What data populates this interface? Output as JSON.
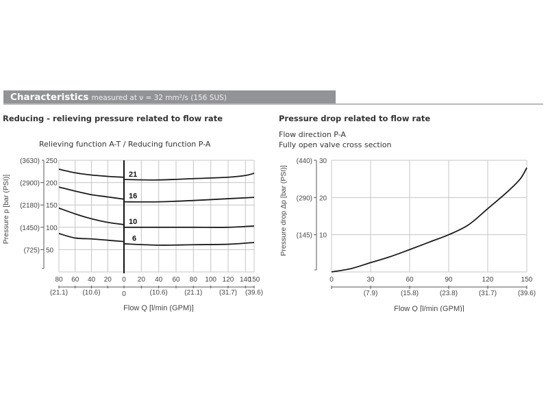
{
  "header": {
    "title": "Characteristics",
    "subtitle": "measured at ν = 32 mm²/s (156 SUS)",
    "bar_color": "#929396"
  },
  "left_panel": {
    "heading": "Reducing - relieving pressure related to flow rate",
    "caption": "Relieving function A-T  /  Reducing function P-A"
  },
  "right_panel": {
    "heading": "Pressure drop related to flow rate",
    "line1": "Flow direction P-A",
    "line2": "Fully open valve cross section"
  },
  "chart_data": [
    {
      "type": "line",
      "title": "Reducing - relieving pressure related to flow rate",
      "subtitle": "Relieving function A-T / Reducing function P-A",
      "xlabel": "Flow Q [l/min (GPM)]",
      "ylabel": "Pressure p [bar (PSI)]",
      "ylim": [
        0,
        250
      ],
      "grid": true,
      "x_tick_labels": [
        "80",
        "60",
        "40",
        "20",
        "0",
        "20",
        "40",
        "60",
        "80",
        "100",
        "120",
        "140",
        "150"
      ],
      "x_secondary_tick_labels": [
        "(21.1)",
        "(10.6)",
        "0",
        "(10.6)",
        "(21.1)",
        "(31.7)",
        "(39.6)"
      ],
      "y_ticks": [
        50,
        100,
        150,
        200,
        250
      ],
      "y_secondary_tick_labels": [
        "(725)",
        "(1450)",
        "(2180)",
        "(2900)",
        "(3630)"
      ],
      "note": "Left of 0: relieving function A-T (flow 80→0 l/min); right of 0: reducing function P-A (flow 0→150 l/min)",
      "series": [
        {
          "name": "21",
          "relieving": {
            "x": [
              80,
              60,
              40,
              20,
              0
            ],
            "y": [
              230,
              222,
              217,
              214,
              212
            ]
          },
          "reducing": {
            "x": [
              0,
              40,
              80,
              120,
              140,
              150
            ],
            "y": [
              207,
              206,
              209,
              212,
              216,
              221
            ]
          }
        },
        {
          "name": "16",
          "relieving": {
            "x": [
              80,
              60,
              40,
              20,
              0
            ],
            "y": [
              190,
              181,
              173,
              168,
              163
            ]
          },
          "reducing": {
            "x": [
              0,
              40,
              80,
              120,
              150
            ],
            "y": [
              157,
              157,
              160,
              164,
              167
            ]
          }
        },
        {
          "name": "10",
          "relieving": {
            "x": [
              80,
              60,
              40,
              20,
              0
            ],
            "y": [
              143,
              130,
              119,
              111,
              106
            ]
          },
          "reducing": {
            "x": [
              0,
              40,
              80,
              120,
              150
            ],
            "y": [
              100,
              100,
              100,
              100,
              103
            ]
          }
        },
        {
          "name": "6",
          "relieving": {
            "x": [
              80,
              60,
              40,
              20,
              0
            ],
            "y": [
              86,
              76,
              74,
              71,
              68
            ]
          },
          "reducing": {
            "x": [
              0,
              40,
              80,
              120,
              150
            ],
            "y": [
              63,
              60,
              61,
              62,
              66
            ]
          }
        }
      ]
    },
    {
      "type": "line",
      "title": "Pressure drop related to flow rate",
      "subtitle": "Flow direction P-A; Fully open valve cross section",
      "xlabel": "Flow Q [l/min (GPM)]",
      "ylabel": "Pressure drop Δp [bar (PSI)]",
      "xlim": [
        0,
        150
      ],
      "ylim": [
        0,
        30
      ],
      "grid": true,
      "x_ticks": [
        0,
        30,
        60,
        90,
        120,
        150
      ],
      "x_secondary_tick_labels": [
        "(7.9)",
        "(15.8)",
        "(23.8)",
        "(31.7)",
        "(39.6)"
      ],
      "y_ticks": [
        10,
        20,
        30
      ],
      "y_secondary_tick_labels": [
        "(145)",
        "(290)",
        "(440)"
      ],
      "series": [
        {
          "name": "P-A",
          "x": [
            0,
            15,
            30,
            45,
            60,
            75,
            90,
            105,
            120,
            135,
            145,
            150
          ],
          "y": [
            0,
            0.9,
            2.5,
            4.1,
            6,
            8,
            10,
            12.6,
            17,
            21.5,
            25,
            28
          ]
        }
      ]
    }
  ]
}
